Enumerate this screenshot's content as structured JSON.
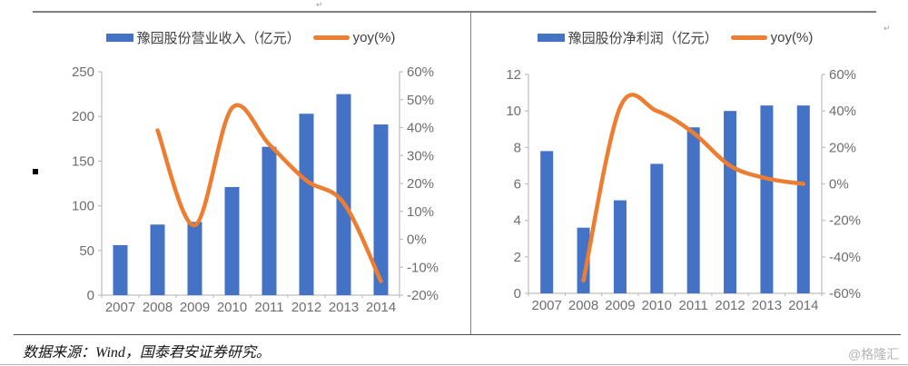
{
  "frame": {
    "footer_source": "数据来源：Wind，国泰君安证券研究。",
    "watermark": "@格隆汇",
    "return_mark": "↵",
    "colors": {
      "bar_blue": "#4472C4",
      "line_orange": "#ED7D31",
      "axis_line": "#BFBFBF",
      "tick_text": "#6E6E6E",
      "legend_text": "#3F3F3F"
    }
  },
  "chart_data": [
    {
      "type": "bar",
      "title": "",
      "categories": [
        "2007",
        "2008",
        "2009",
        "2010",
        "2011",
        "2012",
        "2013",
        "2014"
      ],
      "series": [
        {
          "name": "豫园股份营业收入（亿元）",
          "type": "bar",
          "axis": "left",
          "color": "#4472C4",
          "values": [
            56,
            79,
            82,
            121,
            166,
            203,
            225,
            191
          ]
        },
        {
          "name": "yoy(%)",
          "type": "line",
          "axis": "right",
          "color": "#ED7D31",
          "values": [
            null,
            39,
            5,
            47,
            34,
            21,
            13,
            -15
          ]
        }
      ],
      "left_axis": {
        "min": 0,
        "max": 250,
        "ticks": [
          "250",
          "200",
          "150",
          "100",
          "50",
          "0"
        ]
      },
      "right_axis": {
        "min": -20,
        "max": 60,
        "ticks": [
          "60%",
          "50%",
          "40%",
          "30%",
          "20%",
          "10%",
          "0%",
          "-10%",
          "-20%"
        ]
      },
      "legend_position": "top",
      "grid": false
    },
    {
      "type": "bar",
      "title": "",
      "categories": [
        "2007",
        "2008",
        "2009",
        "2010",
        "2011",
        "2012",
        "2013",
        "2014"
      ],
      "series": [
        {
          "name": "豫园股份净利润（亿元）",
          "type": "bar",
          "axis": "left",
          "color": "#4472C4",
          "values": [
            7.8,
            3.6,
            5.1,
            7.1,
            9.1,
            10.0,
            10.3,
            10.3
          ]
        },
        {
          "name": "yoy(%)",
          "type": "line",
          "axis": "right",
          "color": "#ED7D31",
          "values": [
            null,
            -53,
            42,
            40,
            28,
            10,
            3,
            0
          ]
        }
      ],
      "left_axis": {
        "min": 0,
        "max": 12,
        "ticks": [
          "12",
          "10",
          "8",
          "6",
          "4",
          "2",
          "0"
        ]
      },
      "right_axis": {
        "min": -60,
        "max": 60,
        "ticks": [
          "60%",
          "40%",
          "20%",
          "0%",
          "-20%",
          "-40%",
          "-60%"
        ]
      },
      "legend_position": "top",
      "grid": false
    }
  ]
}
